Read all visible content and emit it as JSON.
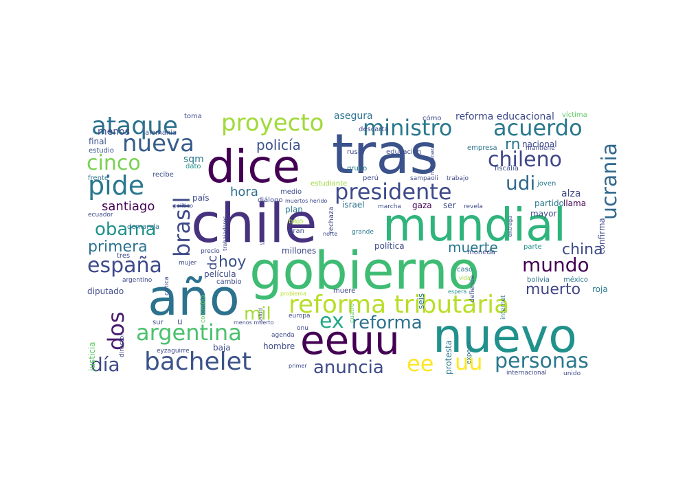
{
  "wordcloud": {
    "words": [
      {
        "text": "chile",
        "color": "#46327e"
      },
      {
        "text": "tras",
        "color": "#3b528b"
      },
      {
        "text": "mundial",
        "color": "#2fb47c"
      },
      {
        "text": "gobierno",
        "color": "#3fbc73"
      },
      {
        "text": "año",
        "color": "#2c728e"
      },
      {
        "text": "nuevo",
        "color": "#21918c"
      },
      {
        "text": "dice",
        "color": "#440154"
      },
      {
        "text": "eeuu",
        "color": "#440154"
      },
      {
        "text": "reforma tributaria",
        "color": "#b8de29"
      },
      {
        "text": "presidente",
        "color": "#3e4a89"
      },
      {
        "text": "bachelet",
        "color": "#3b528b"
      },
      {
        "text": "personas",
        "color": "#2a788e"
      },
      {
        "text": "argentina",
        "color": "#4ac16d"
      },
      {
        "text": "nueva",
        "color": "#365c8d"
      },
      {
        "text": "ministro",
        "color": "#2a788e"
      },
      {
        "text": "proyecto",
        "color": "#a0da39"
      },
      {
        "text": "acuerdo",
        "color": "#2a788e"
      },
      {
        "text": "ataque",
        "color": "#2c728e"
      },
      {
        "text": "pide",
        "color": "#2a788e"
      },
      {
        "text": "ucrania",
        "color": "#31688e"
      },
      {
        "text": "chileno",
        "color": "#3f4788"
      },
      {
        "text": "brasil",
        "color": "#3e4a89"
      },
      {
        "text": "españa",
        "color": "#3e4a89"
      },
      {
        "text": "cinco",
        "color": "#7ad151"
      },
      {
        "text": "dos",
        "color": "#481c6e"
      },
      {
        "text": "mundo",
        "color": "#440154"
      },
      {
        "text": "udi",
        "color": "#31688e"
      },
      {
        "text": "reforma",
        "color": "#2c728e"
      },
      {
        "text": "anuncia",
        "color": "#3e4a89"
      },
      {
        "text": "ee",
        "color": "#fde725"
      },
      {
        "text": "uu",
        "color": "#fde725"
      },
      {
        "text": "ex",
        "color": "#22a884"
      },
      {
        "text": "obama",
        "color": "#21918c"
      },
      {
        "text": "día",
        "color": "#3e4a89"
      },
      {
        "text": "mil",
        "color": "#a5db36"
      },
      {
        "text": "primera",
        "color": "#2c728e"
      },
      {
        "text": "muerte",
        "color": "#2a788e"
      },
      {
        "text": "china",
        "color": "#3e4a89"
      },
      {
        "text": "muerto",
        "color": "#414487"
      },
      {
        "text": "hoy",
        "color": "#3b528b"
      },
      {
        "text": "hora",
        "color": "#2e6e8e"
      },
      {
        "text": "rn",
        "color": "#2a788e"
      },
      {
        "text": "policía",
        "color": "#3b528b"
      },
      {
        "text": "santiago",
        "color": "#440154"
      },
      {
        "text": "sqm",
        "color": "#2a788e"
      },
      {
        "text": "menos",
        "color": "#3e4a89"
      },
      {
        "text": "toma",
        "color": "#3e4a89"
      },
      {
        "text": "asegura",
        "color": "#2c728e"
      },
      {
        "text": "reforma educacional",
        "color": "#3e4a89"
      },
      {
        "text": "víctima",
        "color": "#5ec962"
      },
      {
        "text": "alemania",
        "color": "#3e4a89"
      },
      {
        "text": "final",
        "color": "#3b528b"
      },
      {
        "text": "estudio",
        "color": "#3b528b"
      },
      {
        "text": "frente",
        "color": "#2c728e"
      },
      {
        "text": "recibe",
        "color": "#3b528b"
      },
      {
        "text": "dato",
        "color": "#21918c"
      },
      {
        "text": "nacional",
        "color": "#3e4a89"
      },
      {
        "text": "mantiene",
        "color": "#3e4a89"
      },
      {
        "text": "empresa",
        "color": "#2c728e"
      },
      {
        "text": "fiscalía",
        "color": "#3b528b"
      },
      {
        "text": "alza",
        "color": "#3e4a89"
      },
      {
        "text": "joven",
        "color": "#2a788e"
      },
      {
        "text": "mayor",
        "color": "#3e4a89"
      },
      {
        "text": "partido",
        "color": "#2a788e"
      },
      {
        "text": "llama",
        "color": "#440154"
      },
      {
        "text": "confirma",
        "color": "#3e4a89"
      },
      {
        "text": "parte",
        "color": "#21918c"
      },
      {
        "text": "moneda",
        "color": "#3e4a89"
      },
      {
        "text": "bolivia",
        "color": "#2c728e"
      },
      {
        "text": "méxico",
        "color": "#2a788e"
      },
      {
        "text": "roja",
        "color": "#2a788e"
      },
      {
        "text": "internet",
        "color": "#2c728e"
      },
      {
        "text": "caso",
        "color": "#2c728e"
      },
      {
        "text": "vida",
        "color": "#a0da39"
      },
      {
        "text": "espera",
        "color": "#21918c"
      },
      {
        "text": "defiende",
        "color": "#3b528b"
      },
      {
        "text": "seis",
        "color": "#2c728e"
      },
      {
        "text": "protesta",
        "color": "#2a788e"
      },
      {
        "text": "experto",
        "color": "#2c728e"
      },
      {
        "text": "internacional",
        "color": "#3e4a89"
      },
      {
        "text": "unido",
        "color": "#3e4a89"
      },
      {
        "text": "política",
        "color": "#3e4a89"
      },
      {
        "text": "gaza",
        "color": "#440154"
      },
      {
        "text": "ser",
        "color": "#3e4a89"
      },
      {
        "text": "revela",
        "color": "#3e4a89"
      },
      {
        "text": "israel",
        "color": "#2c728e"
      },
      {
        "text": "marcha",
        "color": "#3e4a89"
      },
      {
        "text": "plan",
        "color": "#2a788e"
      },
      {
        "text": "gran",
        "color": "#3e4a89"
      },
      {
        "text": "bajo",
        "color": "#a0da39"
      },
      {
        "text": "rechaza",
        "color": "#3e4a89"
      },
      {
        "text": "grande",
        "color": "#2a788e"
      },
      {
        "text": "millones",
        "color": "#3e4a89"
      },
      {
        "text": "medio",
        "color": "#3e4a89"
      },
      {
        "text": "diálogo",
        "color": "#3e4a89"
      },
      {
        "text": "estudiante",
        "color": "#a0da39"
      },
      {
        "text": "norte",
        "color": "#3e4a89"
      },
      {
        "text": "perú",
        "color": "#3e4a89"
      },
      {
        "text": "grupo",
        "color": "#2a788e"
      },
      {
        "text": "rusia",
        "color": "#3e4a89"
      },
      {
        "text": "educación",
        "color": "#3e4a89"
      },
      {
        "text": "descarta",
        "color": "#3e4a89"
      },
      {
        "text": "sampaoli",
        "color": "#3e4a89"
      },
      {
        "text": "trabajo",
        "color": "#3e4a89"
      },
      {
        "text": "país",
        "color": "#3e4a89"
      },
      {
        "text": "película",
        "color": "#3e4a89"
      },
      {
        "text": "cambio",
        "color": "#3e4a89"
      },
      {
        "text": "demanda",
        "color": "#2c728e"
      },
      {
        "text": "ecuador",
        "color": "#3e4a89"
      },
      {
        "text": "diputado",
        "color": "#3e4a89"
      },
      {
        "text": "argentino",
        "color": "#3e4a89"
      },
      {
        "text": "tres",
        "color": "#3e4a89"
      },
      {
        "text": "mujer",
        "color": "#3e4a89"
      },
      {
        "text": "precio",
        "color": "#3e4a89"
      },
      {
        "text": "crítica",
        "color": "#3e4a89"
      },
      {
        "text": "director",
        "color": "#3e4a89"
      },
      {
        "text": "justicia",
        "color": "#5ec962"
      },
      {
        "text": "sur",
        "color": "#3e4a89"
      },
      {
        "text": "baja",
        "color": "#3e4a89"
      },
      {
        "text": "eyzaguirre",
        "color": "#3e4a89"
      },
      {
        "text": "hombre",
        "color": "#3e4a89"
      },
      {
        "text": "agenda",
        "color": "#3e4a89"
      },
      {
        "text": "europa",
        "color": "#3e4a89"
      },
      {
        "text": "onu",
        "color": "#3e4a89"
      },
      {
        "text": "muere",
        "color": "#3e4a89"
      },
      {
        "text": "problema",
        "color": "#b8de29"
      },
      {
        "text": "cuatro",
        "color": "#5ec962"
      },
      {
        "text": "primer",
        "color": "#3e4a89"
      },
      {
        "text": "salud",
        "color": "#3e4a89"
      },
      {
        "text": "dc",
        "color": "#3e4a89"
      },
      {
        "text": "colombia",
        "color": "#5ec962"
      },
      {
        "text": "trabajadores",
        "color": "#3e4a89"
      },
      {
        "text": "político",
        "color": "#3e4a89"
      },
      {
        "text": "menos muerto",
        "color": "#3e4a89"
      },
      {
        "text": "muertos herido",
        "color": "#3e4a89"
      },
      {
        "text": "mantener",
        "color": "#3e4a89"
      },
      {
        "text": "entrega",
        "color": "#3e4a89"
      },
      {
        "text": "cómo",
        "color": "#3e4a89"
      },
      {
        "text": "si",
        "color": "#3e4a89"
      },
      {
        "text": "u",
        "color": "#3e4a89"
      }
    ]
  }
}
